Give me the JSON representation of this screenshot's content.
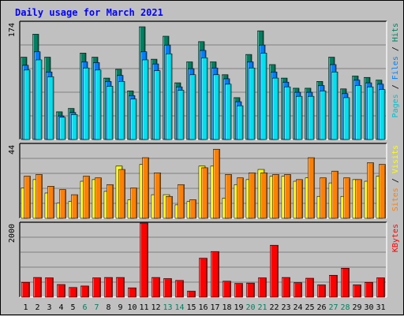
{
  "chart_data": {
    "type": "bar",
    "title": "Daily usage for March 2021",
    "categories": [
      "1",
      "2",
      "3",
      "4",
      "5",
      "6",
      "7",
      "8",
      "9",
      "10",
      "11",
      "12",
      "13",
      "14",
      "15",
      "16",
      "17",
      "18",
      "19",
      "20",
      "21",
      "22",
      "23",
      "24",
      "25",
      "26",
      "27",
      "28",
      "29",
      "30",
      "31"
    ],
    "weekend_days": [
      "6",
      "7",
      "13",
      "14",
      "20",
      "21",
      "27",
      "28"
    ],
    "panels": [
      {
        "id": "requests",
        "max_label": "174",
        "ylim": [
          0,
          174
        ],
        "right_label": [
          "Pages",
          " / ",
          "Files",
          " / ",
          "Hits"
        ],
        "right_label_colors": [
          "#00c0d0",
          "#000000",
          "#0080ff",
          "#000000",
          "#008060"
        ],
        "series": [
          {
            "name": "Hits",
            "color": "#008060",
            "values": [
              122,
              156,
              122,
              41,
              46,
              128,
              122,
              91,
              104,
              72,
              167,
              119,
              153,
              84,
              115,
              145,
              115,
              96,
              62,
              126,
              161,
              111,
              91,
              76,
              76,
              86,
              122,
              75,
              94,
              92,
              88
            ]
          },
          {
            "name": "Files",
            "color": "#0080ff",
            "values": [
              110,
              130,
              100,
              35,
              40,
              115,
              114,
              86,
              95,
              65,
              130,
              112,
              140,
              78,
              105,
              132,
              106,
              90,
              56,
              115,
              140,
              100,
              85,
              70,
              70,
              80,
              111,
              68,
              88,
              84,
              82
            ]
          },
          {
            "name": "Pages",
            "color": "#00e0f0",
            "values": [
              103,
              118,
              93,
              33,
              37,
              106,
              103,
              79,
              86,
              60,
              118,
              102,
              127,
              73,
              96,
              121,
              96,
              82,
              50,
              106,
              128,
              91,
              78,
              64,
              64,
              72,
              100,
              62,
              80,
              78,
              74
            ]
          }
        ]
      },
      {
        "id": "visits",
        "max_label": "44",
        "ylim": [
          0,
          44
        ],
        "right_label": [
          "Sites",
          " / ",
          "Visits"
        ],
        "right_label_colors": [
          "#ff8000",
          "#000000",
          "#ffff00"
        ],
        "series": [
          {
            "name": "Visits",
            "color": "#ffff00",
            "values": [
              18,
              23,
              15,
              9,
              10,
              22,
              23,
              16,
              31,
              11,
              32,
              14,
              14,
              8,
              10,
              31,
              31,
              12,
              20,
              23,
              29,
              25,
              25,
              22,
              24,
              13,
              21,
              13,
              23,
              22,
              25
            ]
          },
          {
            "name": "Sites",
            "color": "#ff8000",
            "values": [
              25,
              26,
              19,
              17,
              14,
              25,
              24,
              20,
              29,
              18,
              36,
              27,
              13,
              20,
              11,
              30,
              41,
              26,
              24,
              27,
              27,
              26,
              26,
              23,
              36,
              24,
              28,
              24,
              23,
              33,
              32
            ]
          }
        ]
      },
      {
        "id": "kbytes",
        "max_label": "2000",
        "ylim": [
          0,
          2000
        ],
        "right_label": [
          "KBytes"
        ],
        "right_label_colors": [
          "#ff0000"
        ],
        "series": [
          {
            "name": "KBytes",
            "color": "#ff0000",
            "values": [
              400,
              530,
              520,
              340,
              260,
              300,
              520,
              530,
              530,
              250,
              2000,
              530,
              500,
              450,
              160,
              1050,
              1230,
              430,
              370,
              380,
              520,
              1400,
              530,
              390,
              510,
              330,
              590,
              780,
              330,
              400,
              520
            ]
          }
        ]
      }
    ]
  }
}
